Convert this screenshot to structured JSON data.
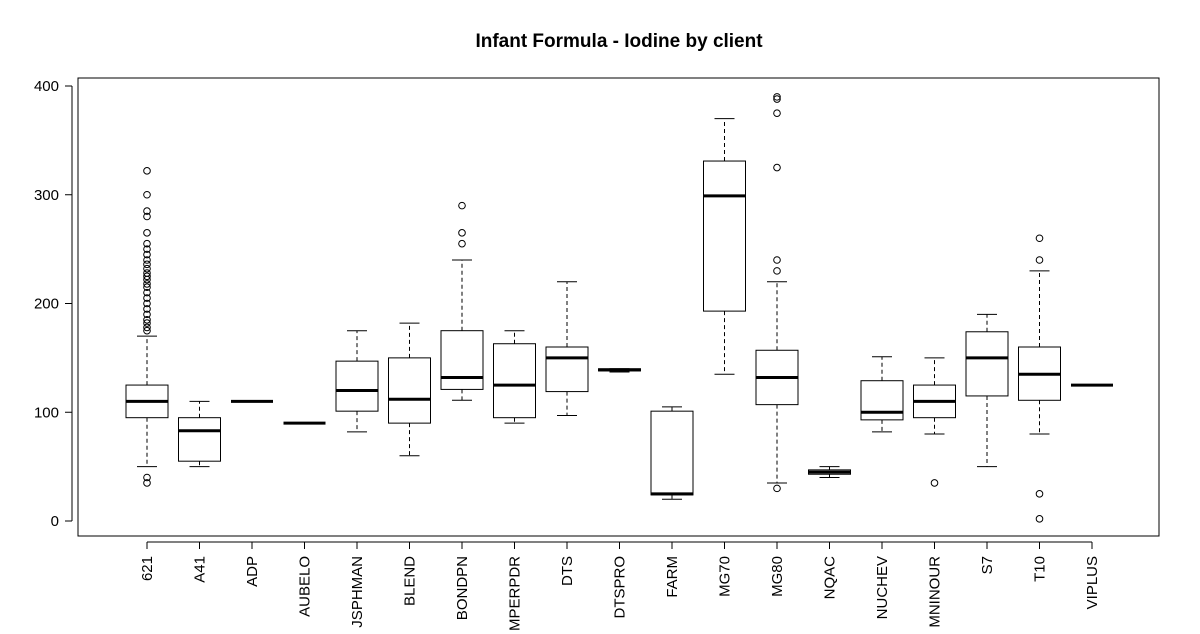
{
  "chart_data": {
    "type": "boxplot",
    "title": "Infant Formula - Iodine by client",
    "xlabel": "",
    "ylabel": "",
    "ylim": [
      -15,
      410
    ],
    "yticks": [
      0,
      100,
      200,
      300,
      400
    ],
    "yticks_labels": [
      "0",
      "100",
      "200",
      "300",
      "400"
    ],
    "grid": false,
    "categories": [
      "621",
      "A41",
      "ADP",
      "AUBELO",
      "JSPHMAN",
      "BLEND",
      "BONDPN",
      "MPERPDR",
      "DTS",
      "DTSPRO",
      "FARM",
      "MG70",
      "MG80",
      "NQAC",
      "NUCHEV",
      "MNINOUR",
      "S7",
      "T10",
      "VIPLUS"
    ],
    "boxes": [
      {
        "min": 50,
        "q1": 95,
        "median": 110,
        "q3": 125,
        "max": 170,
        "outliers": [
          35,
          40,
          175,
          178,
          182,
          185,
          190,
          195,
          200,
          205,
          210,
          215,
          218,
          222,
          225,
          228,
          232,
          236,
          240,
          245,
          250,
          255,
          265,
          280,
          285,
          300,
          322
        ]
      },
      {
        "min": 50,
        "q1": 55,
        "median": 83,
        "q3": 95,
        "max": 110,
        "outliers": []
      },
      {
        "min": 110,
        "q1": 110,
        "median": 110,
        "q3": 110,
        "max": 110,
        "outliers": []
      },
      {
        "min": 90,
        "q1": 90,
        "median": 90,
        "q3": 90,
        "max": 90,
        "outliers": []
      },
      {
        "min": 82,
        "q1": 101,
        "median": 120,
        "q3": 147,
        "max": 175,
        "outliers": []
      },
      {
        "min": 60,
        "q1": 90,
        "median": 112,
        "q3": 150,
        "max": 182,
        "outliers": []
      },
      {
        "min": 111,
        "q1": 121,
        "median": 132,
        "q3": 175,
        "max": 240,
        "outliers": [
          255,
          265,
          290
        ]
      },
      {
        "min": 90,
        "q1": 95,
        "median": 125,
        "q3": 163,
        "max": 175,
        "outliers": []
      },
      {
        "min": 97,
        "q1": 119,
        "median": 150,
        "q3": 160,
        "max": 220,
        "outliers": []
      },
      {
        "min": 137,
        "q1": 138,
        "median": 139,
        "q3": 140,
        "max": 140,
        "outliers": []
      },
      {
        "min": 20,
        "q1": 24,
        "median": 25,
        "q3": 101,
        "max": 105,
        "outliers": []
      },
      {
        "min": 135,
        "q1": 193,
        "median": 299,
        "q3": 331,
        "max": 370,
        "outliers": []
      },
      {
        "min": 35,
        "q1": 107,
        "median": 132,
        "q3": 157,
        "max": 220,
        "outliers": [
          30,
          230,
          240,
          325,
          375,
          388,
          390
        ]
      },
      {
        "min": 40,
        "q1": 43,
        "median": 45,
        "q3": 47,
        "max": 50,
        "outliers": []
      },
      {
        "min": 82,
        "q1": 93,
        "median": 100,
        "q3": 129,
        "max": 151,
        "outliers": []
      },
      {
        "min": 80,
        "q1": 95,
        "median": 110,
        "q3": 125,
        "max": 150,
        "outliers": [
          35
        ]
      },
      {
        "min": 50,
        "q1": 115,
        "median": 150,
        "q3": 174,
        "max": 190,
        "outliers": []
      },
      {
        "min": 80,
        "q1": 111,
        "median": 135,
        "q3": 160,
        "max": 230,
        "outliers": [
          2,
          25,
          240,
          260
        ]
      },
      {
        "min": 125,
        "q1": 125,
        "median": 125,
        "q3": 125,
        "max": 125,
        "outliers": []
      }
    ]
  }
}
